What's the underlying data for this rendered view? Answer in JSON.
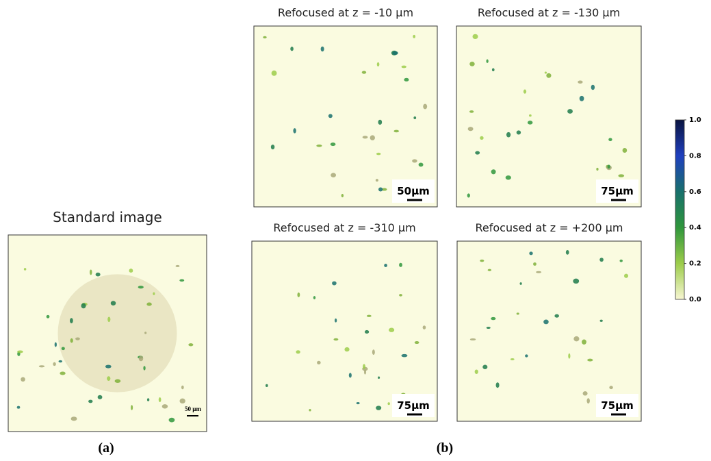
{
  "panel_a": {
    "title": "Standard image",
    "scale_bar": "50 µm",
    "caption": "(a)"
  },
  "panel_b": {
    "caption": "(b)",
    "images": [
      {
        "title": "Refocused at z = -10 µm",
        "scale_bar": "50µm"
      },
      {
        "title": "Refocused at z = -130 µm",
        "scale_bar": "75µm"
      },
      {
        "title": "Refocused at z = -310 µm",
        "scale_bar": "75µm"
      },
      {
        "title": "Refocused at z =  +200 µm",
        "scale_bar": "75µm"
      }
    ]
  },
  "colorbar": {
    "min": 0,
    "max": 1,
    "ticks": [
      {
        "value": 1,
        "label": "1.0"
      },
      {
        "value": 0.8,
        "label": "0.8"
      },
      {
        "value": 0.6,
        "label": "0.6"
      },
      {
        "value": 0.4,
        "label": "0.4"
      },
      {
        "value": 0.2,
        "label": "0.2"
      },
      {
        "value": 0,
        "label": "0.0"
      }
    ]
  }
}
